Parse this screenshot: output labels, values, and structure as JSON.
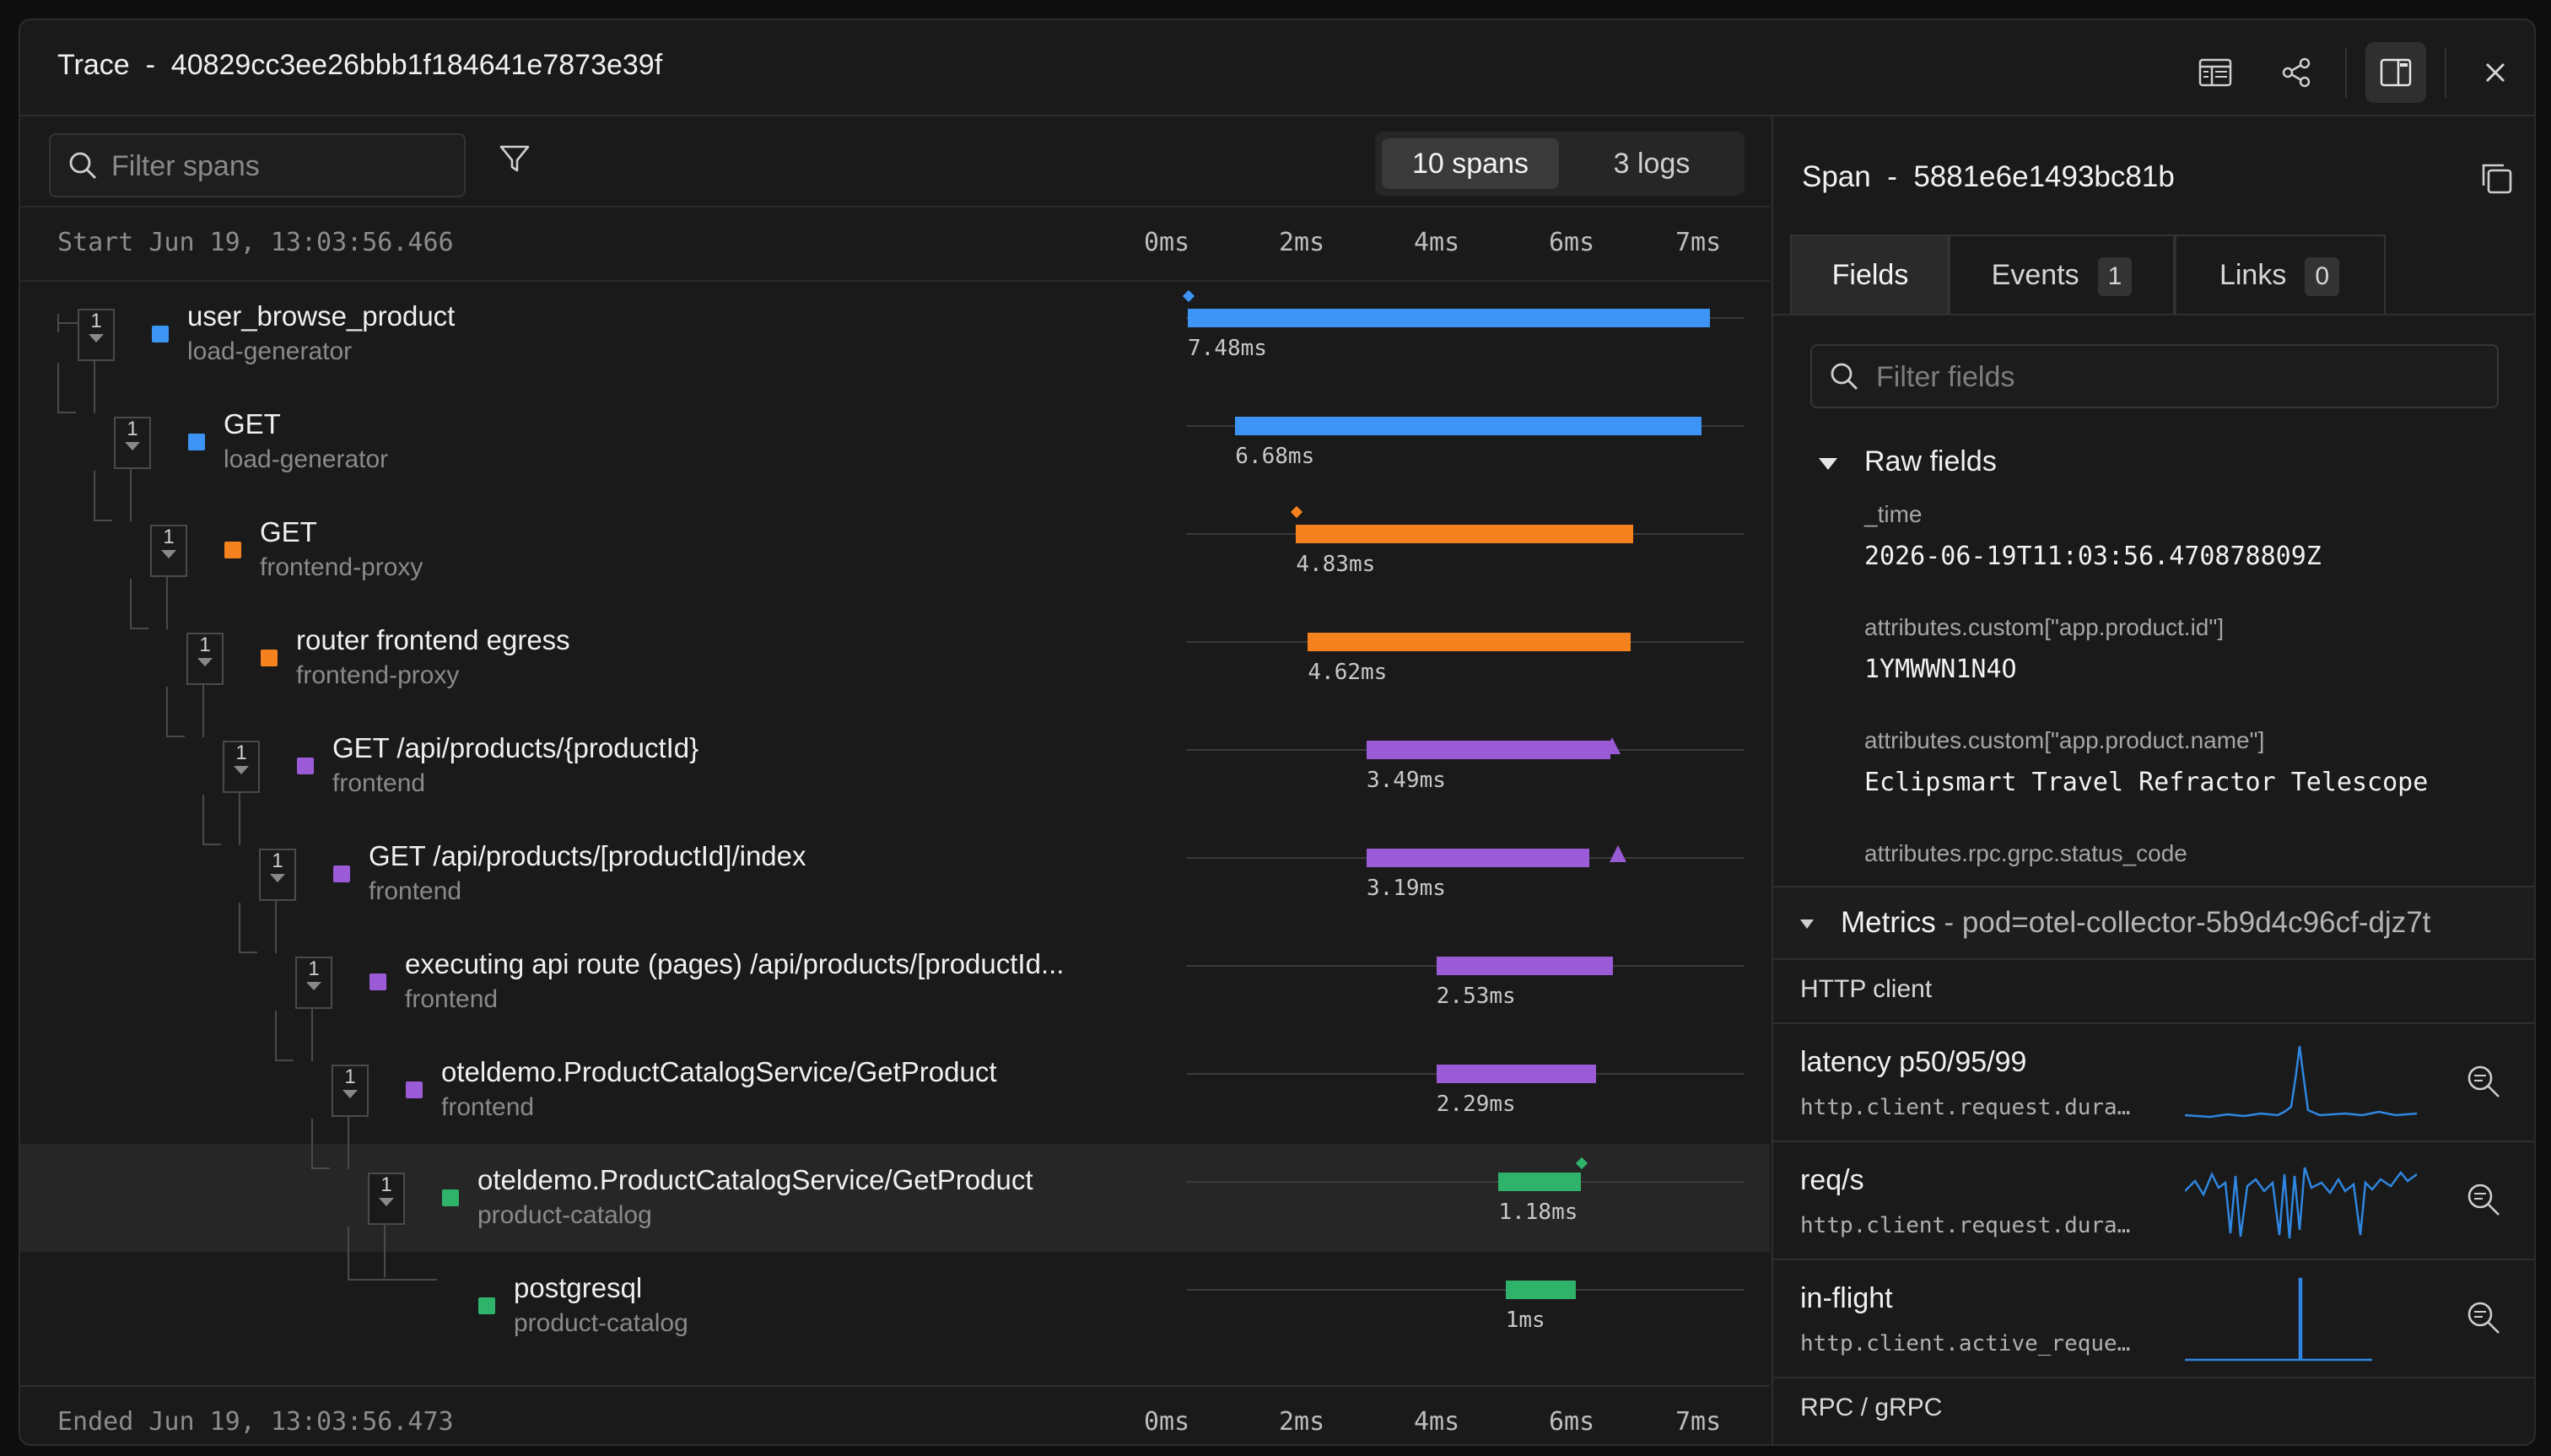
{
  "window": {
    "title_label": "Trace",
    "title_sep": "-",
    "trace_id": "40829cc3ee26bbb1f184641e7873e39f"
  },
  "toolbar": {
    "icons": [
      "table-icon",
      "share-icon",
      "panel-icon",
      "close-icon"
    ]
  },
  "filter": {
    "placeholder": "Filter spans",
    "spans_tab": "10 spans",
    "logs_tab": "3 logs"
  },
  "timeline": {
    "start_label": "Start Jun 19, 13:03:56.466",
    "end_label": "Ended Jun 19, 13:03:56.473",
    "ticks": [
      "0ms",
      "2ms",
      "4ms",
      "6ms",
      "7ms"
    ]
  },
  "colors": {
    "load_generator": "#3d94f5",
    "frontend_proxy": "#f5821f",
    "frontend": "#9b5bd6",
    "product_catalog": "#2fb36b"
  },
  "spans": [
    {
      "name": "user_browse_product",
      "service": "load-generator",
      "count": "1",
      "duration": "7.48ms",
      "start_ms": 0.0,
      "dur_ms": 7.48,
      "color": "#3d94f5",
      "depth": 0,
      "marker": "diamond"
    },
    {
      "name": "GET",
      "service": "load-generator",
      "count": "1",
      "duration": "6.68ms",
      "start_ms": 0.68,
      "dur_ms": 6.68,
      "color": "#3d94f5",
      "depth": 1,
      "marker": ""
    },
    {
      "name": "GET",
      "service": "frontend-proxy",
      "count": "1",
      "duration": "4.83ms",
      "start_ms": 1.55,
      "dur_ms": 4.83,
      "color": "#f5821f",
      "depth": 2,
      "marker": "diamond"
    },
    {
      "name": "router frontend egress",
      "service": "frontend-proxy",
      "count": "1",
      "duration": "4.62ms",
      "start_ms": 1.72,
      "dur_ms": 4.62,
      "color": "#f5821f",
      "depth": 3,
      "marker": ""
    },
    {
      "name": "GET /api/products/{productId}",
      "service": "frontend",
      "count": "1",
      "duration": "3.49ms",
      "start_ms": 2.56,
      "dur_ms": 3.49,
      "color": "#9b5bd6",
      "depth": 4,
      "marker": "triangle"
    },
    {
      "name": "GET /api/products/[productId]/index",
      "service": "frontend",
      "count": "1",
      "duration": "3.19ms",
      "start_ms": 2.56,
      "dur_ms": 3.19,
      "color": "#9b5bd6",
      "depth": 5,
      "marker": "triangle"
    },
    {
      "name": "executing api route (pages) /api/products/[productId...",
      "service": "frontend",
      "count": "1",
      "duration": "2.53ms",
      "start_ms": 3.56,
      "dur_ms": 2.53,
      "color": "#9b5bd6",
      "depth": 6,
      "marker": ""
    },
    {
      "name": "oteldemo.ProductCatalogService/GetProduct",
      "service": "frontend",
      "count": "1",
      "duration": "2.29ms",
      "start_ms": 3.56,
      "dur_ms": 2.29,
      "color": "#9b5bd6",
      "depth": 7,
      "marker": ""
    },
    {
      "name": "oteldemo.ProductCatalogService/GetProduct",
      "service": "product-catalog",
      "count": "1",
      "duration": "1.18ms",
      "start_ms": 4.45,
      "dur_ms": 1.18,
      "color": "#2fb36b",
      "depth": 8,
      "marker": "diamond",
      "selected": true
    },
    {
      "name": "postgresql",
      "service": "product-catalog",
      "count": "",
      "duration": "1ms",
      "start_ms": 4.55,
      "dur_ms": 1.0,
      "color": "#2fb36b",
      "depth": 9,
      "marker": ""
    }
  ],
  "detail": {
    "span_label": "Span",
    "span_sep": "-",
    "span_id": "5881e6e1493bc81b",
    "tabs": [
      {
        "label": "Fields",
        "badge": ""
      },
      {
        "label": "Events",
        "badge": "1"
      },
      {
        "label": "Links",
        "badge": "0"
      }
    ],
    "filter_placeholder": "Filter fields",
    "raw_fields_label": "Raw fields",
    "fields": [
      {
        "key": "_time",
        "value": "2026-06-19T11:03:56.470878809Z"
      },
      {
        "key": "attributes.custom[\"app.product.id\"]",
        "value": "1YMWWN1N4O"
      },
      {
        "key": "attributes.custom[\"app.product.name\"]",
        "value": "Eclipsmart Travel Refractor Telescope"
      },
      {
        "key": "attributes.rpc.grpc.status_code",
        "value": ""
      }
    ],
    "metrics": {
      "label": "Metrics",
      "sep": "-",
      "pod": "pod=otel-collector-5b9d4c96cf-djz7t",
      "http_section": "HTTP client",
      "rpc_section": "RPC / gRPC",
      "rows": [
        {
          "name": "latency p50/95/99",
          "metric": "http.client.request.dura…"
        },
        {
          "name": "req/s",
          "metric": "http.client.request.dura…"
        },
        {
          "name": "in-flight",
          "metric": "http.client.active_reque…"
        }
      ]
    }
  }
}
